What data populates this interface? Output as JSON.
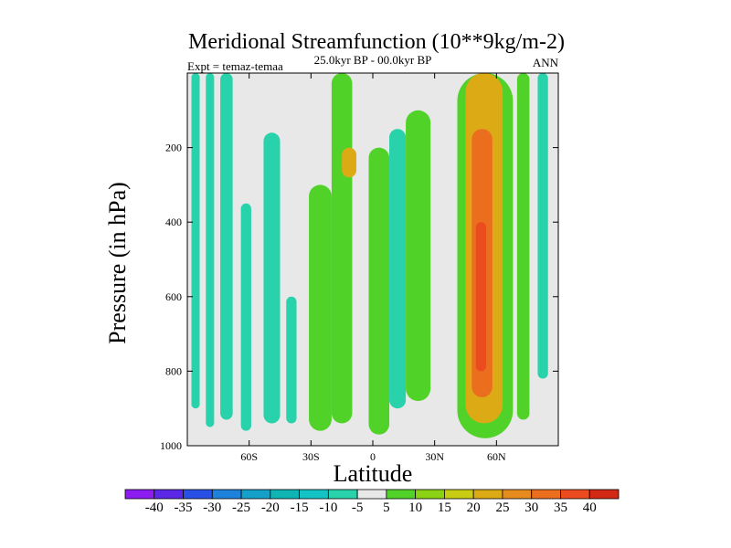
{
  "chart_data": {
    "type": "heatmap",
    "title": "Meridional Streamfunction (10**9kg/m-2)",
    "subtitle": "25.0kyr BP - 00.0kyr BP",
    "left_string": "Expt = temaz-temaa",
    "right_string": "ANN",
    "xlabel": "Latitude",
    "ylabel": "Pressure (in hPa)",
    "xlim": [
      -90,
      90
    ],
    "ylim": [
      1000,
      0
    ],
    "x_ticks": [
      {
        "value": -60,
        "label": "60S"
      },
      {
        "value": -30,
        "label": "30S"
      },
      {
        "value": 0,
        "label": "0"
      },
      {
        "value": 30,
        "label": "30N"
      },
      {
        "value": 60,
        "label": "60N"
      }
    ],
    "y_ticks": [
      {
        "value": 200,
        "label": "200"
      },
      {
        "value": 400,
        "label": "400"
      },
      {
        "value": 600,
        "label": "600"
      },
      {
        "value": 800,
        "label": "800"
      },
      {
        "value": 1000,
        "label": "1000"
      }
    ],
    "background_color": "#e8e8e8",
    "colorbar": {
      "levels": [
        -40,
        -35,
        -30,
        -25,
        -20,
        -15,
        -10,
        -5,
        5,
        10,
        15,
        20,
        25,
        30,
        35,
        40
      ],
      "labels": [
        "-40",
        "-35",
        "-30",
        "-25",
        "-20",
        "-15",
        "-10",
        "-5",
        "5",
        "10",
        "15",
        "20",
        "25",
        "30",
        "35",
        "40"
      ],
      "colors": [
        "#8c1cf0",
        "#5a28e6",
        "#2850e6",
        "#1e82dc",
        "#14a0c8",
        "#0fb4b4",
        "#14c3c3",
        "#28d2aa",
        "#e8e8e8",
        "#50d228",
        "#8cd214",
        "#c8cd14",
        "#dcaa14",
        "#e68c1e",
        "#eb6e1e",
        "#eb4b1e",
        "#d22814"
      ]
    },
    "regions": [
      {
        "name": "teal-band-far-south-a",
        "level": -7,
        "lat": [
          -88,
          -84
        ],
        "p": [
          0,
          900
        ]
      },
      {
        "name": "teal-band-far-south-b",
        "level": -7,
        "lat": [
          -81,
          -77
        ],
        "p": [
          0,
          950
        ]
      },
      {
        "name": "teal-band-south-70",
        "level": -7,
        "lat": [
          -74,
          -68
        ],
        "p": [
          0,
          930
        ]
      },
      {
        "name": "teal-band-south-60",
        "level": -7,
        "lat": [
          -64,
          -59
        ],
        "p": [
          350,
          960
        ]
      },
      {
        "name": "teal-band-south-48",
        "level": -7,
        "lat": [
          -53,
          -45
        ],
        "p": [
          160,
          940
        ]
      },
      {
        "name": "teal-band-south-40",
        "level": -7,
        "lat": [
          -42,
          -37
        ],
        "p": [
          600,
          940
        ]
      },
      {
        "name": "green-band-south-30",
        "level": 7,
        "lat": [
          -31,
          -20
        ],
        "p": [
          300,
          960
        ]
      },
      {
        "name": "green-band-south-18",
        "level": 7,
        "lat": [
          -20,
          -10
        ],
        "p": [
          0,
          940
        ]
      },
      {
        "name": "orange-core-upper-south",
        "level": 22,
        "lat": [
          -15,
          -8
        ],
        "p": [
          200,
          280
        ]
      },
      {
        "name": "green-band-equator",
        "level": 7,
        "lat": [
          -2,
          8
        ],
        "p": [
          200,
          970
        ]
      },
      {
        "name": "teal-band-north-12",
        "level": -10,
        "lat": [
          8,
          16
        ],
        "p": [
          150,
          900
        ]
      },
      {
        "name": "green-band-north-20",
        "level": 9,
        "lat": [
          16,
          28
        ],
        "p": [
          100,
          880
        ]
      },
      {
        "name": "jet-green-envelope",
        "level": 7,
        "lat": [
          41,
          68
        ],
        "p": [
          0,
          980
        ]
      },
      {
        "name": "jet-yellow-envelope",
        "level": 20,
        "lat": [
          45,
          63
        ],
        "p": [
          0,
          940
        ]
      },
      {
        "name": "jet-orange-core",
        "level": 30,
        "lat": [
          48,
          58
        ],
        "p": [
          150,
          870
        ]
      },
      {
        "name": "jet-red-core",
        "level": 38,
        "lat": [
          50,
          55
        ],
        "p": [
          400,
          800
        ]
      },
      {
        "name": "green-band-north-72",
        "level": 7,
        "lat": [
          70,
          76
        ],
        "p": [
          0,
          930
        ]
      },
      {
        "name": "teal-band-north-80",
        "level": -7,
        "lat": [
          80,
          85
        ],
        "p": [
          0,
          820
        ]
      }
    ]
  }
}
